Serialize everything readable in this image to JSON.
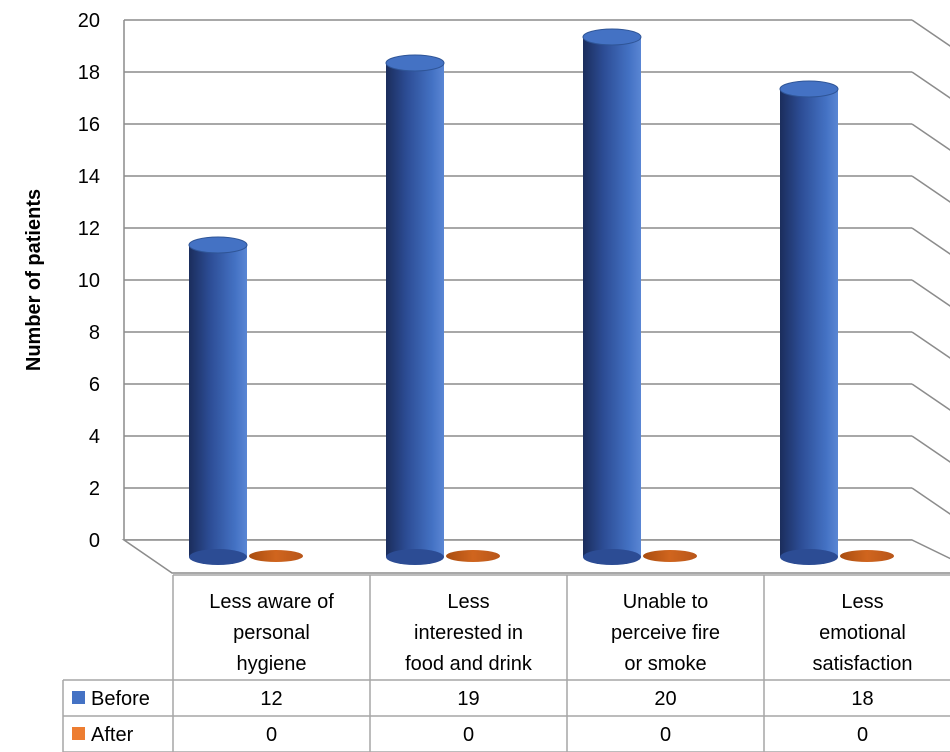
{
  "chart_data": {
    "type": "bar",
    "style": "3d-cylinder-with-data-table",
    "ylabel": "Number of patients",
    "xlabel": "",
    "ylim": [
      0,
      20
    ],
    "yticks": [
      "0",
      "2",
      "4",
      "6",
      "8",
      "10",
      "12",
      "14",
      "16",
      "18",
      "20"
    ],
    "categories": [
      [
        "Less aware of",
        "personal",
        "hygiene"
      ],
      [
        "Less",
        "interested in",
        "food and drink"
      ],
      [
        "Unable to",
        "perceive fire",
        "or smoke"
      ],
      [
        "Less",
        "emotional",
        "satisfaction"
      ]
    ],
    "series": [
      {
        "name": "Before",
        "color": "#4472C4",
        "values": [
          12,
          19,
          20,
          18
        ],
        "labels": [
          "12",
          "19",
          "20",
          "18"
        ]
      },
      {
        "name": "After",
        "color": "#ED7D31",
        "values": [
          0,
          0,
          0,
          0
        ],
        "labels": [
          "0",
          "0",
          "0",
          "0"
        ]
      }
    ],
    "grid": true,
    "legend": "data-table-left"
  }
}
